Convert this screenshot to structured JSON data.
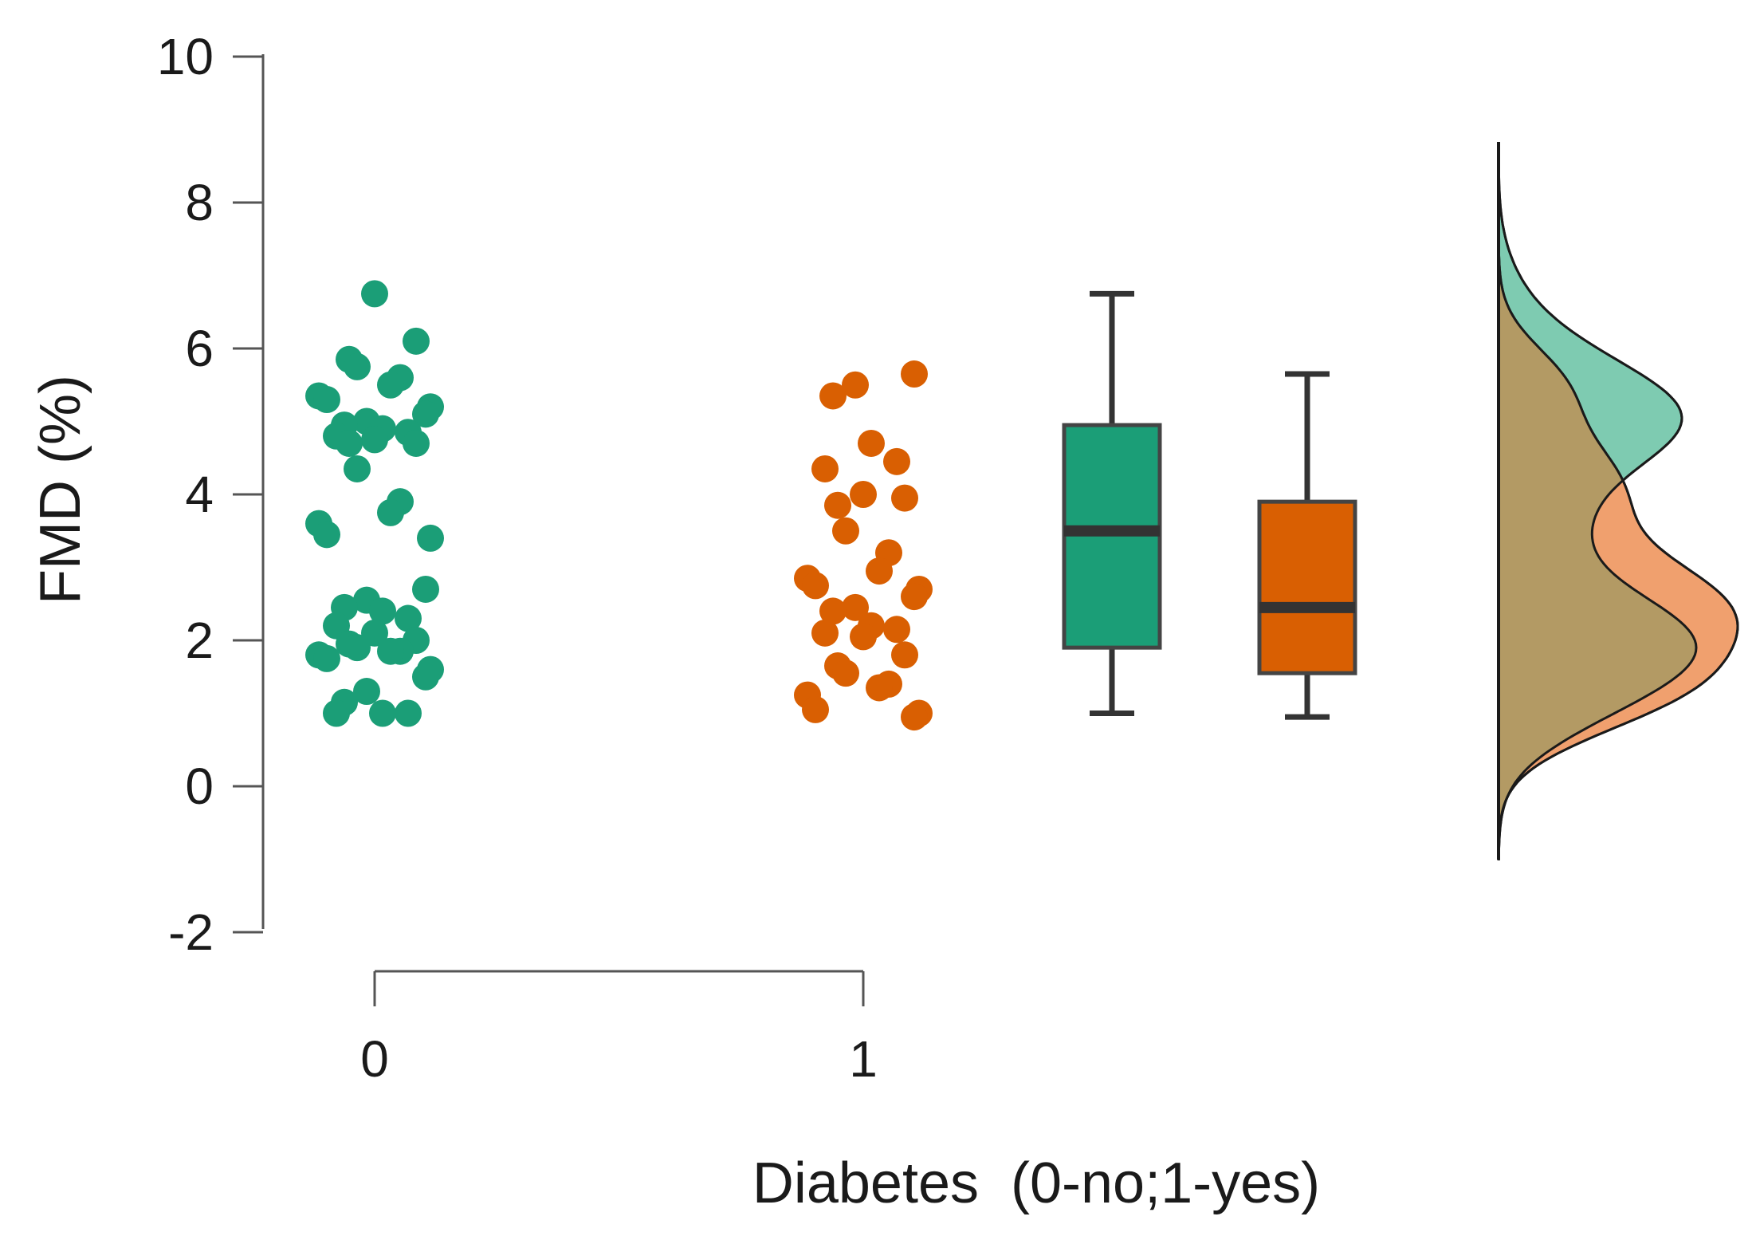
{
  "chart_data": {
    "type": "raincloud",
    "ylabel": "FMD (%)",
    "xlabel": "Diabetes  (0-no;1-yes)",
    "ylim": [
      -2,
      10
    ],
    "yticks": [
      -2,
      0,
      2,
      4,
      6,
      8,
      10
    ],
    "ytick_labels": [
      "-2",
      "0",
      "2",
      "4",
      "6",
      "8",
      "10"
    ],
    "xticks": [
      "0",
      "1"
    ],
    "groups": [
      {
        "category": "0",
        "color": "#1b9e77",
        "points": [
          6.75,
          6.1,
          5.85,
          5.75,
          5.6,
          5.5,
          5.35,
          5.3,
          5.2,
          5.1,
          5.0,
          4.95,
          4.9,
          4.85,
          4.8,
          4.75,
          4.7,
          4.7,
          4.35,
          3.9,
          3.75,
          3.6,
          3.45,
          3.4,
          2.7,
          2.55,
          2.45,
          2.4,
          2.3,
          2.2,
          2.1,
          2.0,
          1.95,
          1.9,
          1.85,
          1.85,
          1.8,
          1.75,
          1.6,
          1.5,
          1.3,
          1.15,
          1.0,
          1.0,
          1.0
        ],
        "box": {
          "min": 1.0,
          "q1": 1.9,
          "median": 3.5,
          "q3": 4.95,
          "max": 6.75
        }
      },
      {
        "category": "1",
        "color": "#d95f02",
        "points": [
          5.65,
          5.5,
          5.35,
          4.7,
          4.45,
          4.35,
          4.0,
          3.95,
          3.85,
          3.5,
          3.2,
          2.95,
          2.85,
          2.75,
          2.7,
          2.6,
          2.45,
          2.4,
          2.2,
          2.15,
          2.1,
          2.05,
          1.8,
          1.65,
          1.55,
          1.4,
          1.35,
          1.25,
          1.05,
          1.0,
          0.95
        ],
        "box": {
          "min": 0.95,
          "q1": 1.55,
          "median": 2.45,
          "q3": 3.9,
          "max": 5.65
        }
      }
    ],
    "density_colors": [
      "#7ecbb1",
      "#f0a06e"
    ],
    "density_overlap_color": "#b39a64"
  }
}
